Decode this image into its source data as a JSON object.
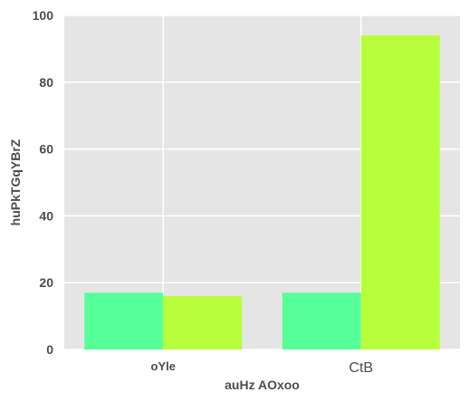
{
  "chart_data": {
    "type": "bar",
    "categories": [
      "oYle",
      "CtB"
    ],
    "series": [
      {
        "color": "#57ff99",
        "values": [
          17,
          17
        ]
      },
      {
        "color": "#b8ff3b",
        "values": [
          16,
          94
        ]
      }
    ],
    "xlabel": "auHz AOxoo",
    "ylabel": "huPkTGqYBrZ",
    "ylim": [
      0,
      100
    ],
    "yticks": [
      0,
      20,
      40,
      60,
      80,
      100
    ],
    "grid": true,
    "background": "#e5e5e5"
  }
}
